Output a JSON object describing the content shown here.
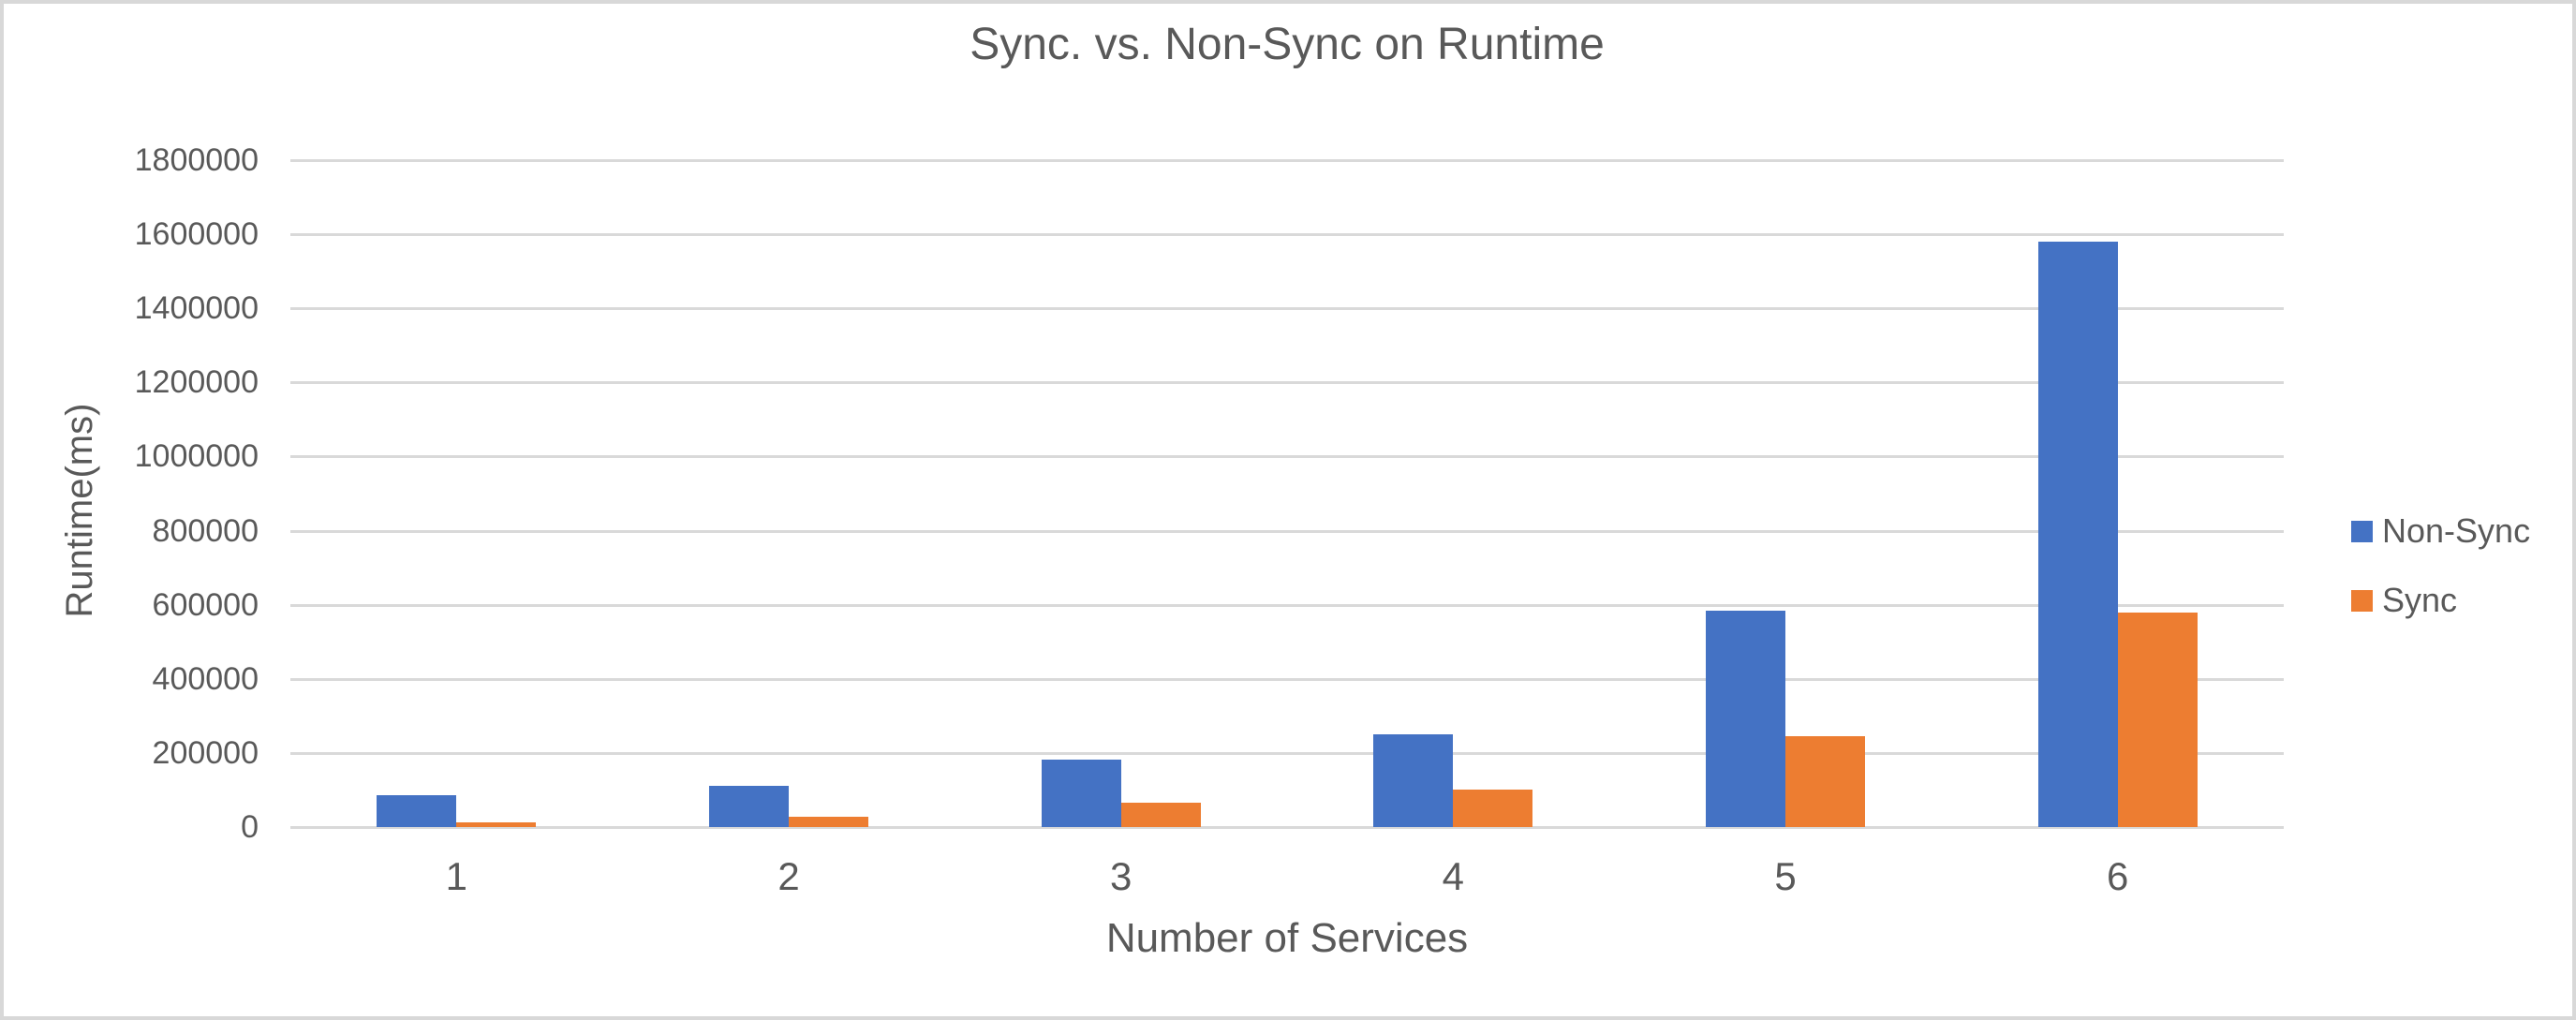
{
  "colors": {
    "non_sync": "#4472C4",
    "sync": "#ED7D31",
    "gridline": "#D9D9D9",
    "text": "#595959",
    "frame_border": "#D8D8D8",
    "background": "#FFFFFF"
  },
  "chart_data": {
    "type": "bar",
    "title": "Sync. vs. Non-Sync on Runtime",
    "xlabel": "Number of Services",
    "ylabel": "Runtime(ms)",
    "categories": [
      "1",
      "2",
      "3",
      "4",
      "5",
      "6"
    ],
    "series": [
      {
        "name": "Non-Sync",
        "color": "#4472C4",
        "values": [
          85000,
          112000,
          183000,
          250000,
          585000,
          1580000
        ]
      },
      {
        "name": "Sync",
        "color": "#ED7D31",
        "values": [
          13000,
          28000,
          65000,
          100000,
          245000,
          580000
        ]
      }
    ],
    "ylim": [
      0,
      1800000
    ],
    "yticks": [
      0,
      200000,
      400000,
      600000,
      800000,
      1000000,
      1200000,
      1400000,
      1600000,
      1800000
    ],
    "ytick_labels": [
      "0",
      "200000",
      "400000",
      "600000",
      "800000",
      "1000000",
      "1200000",
      "1400000",
      "1600000",
      "1800000"
    ],
    "grid": true,
    "legend_position": "right"
  }
}
